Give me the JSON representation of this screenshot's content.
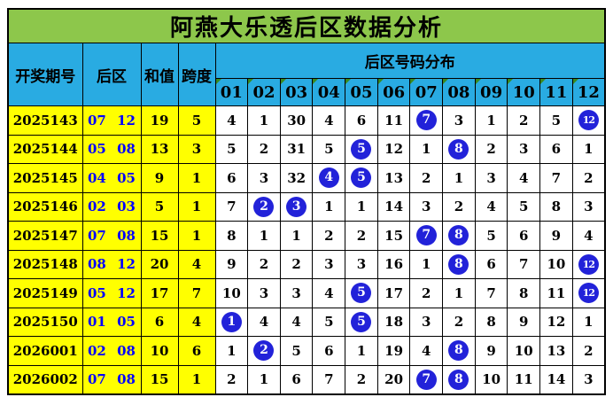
{
  "chart_data": {
    "type": "table",
    "title": "阿燕大乐透后区数据分析",
    "header": {
      "period": "开奖期号",
      "back_zone": "后区",
      "sum": "和值",
      "span": "跨度",
      "distribution": "后区号码分布"
    },
    "number_columns": [
      "01",
      "02",
      "03",
      "04",
      "05",
      "06",
      "07",
      "08",
      "09",
      "10",
      "11",
      "12"
    ],
    "rows": [
      {
        "period": "2025143",
        "back_zone": "07 12",
        "sum": "19",
        "span": "5",
        "cells": [
          "4",
          "1",
          "30",
          "4",
          "6",
          "11",
          "7",
          "3",
          "1",
          "2",
          "5",
          "12"
        ],
        "ball_columns": [
          "07",
          "12"
        ]
      },
      {
        "period": "2025144",
        "back_zone": "05 08",
        "sum": "13",
        "span": "3",
        "cells": [
          "5",
          "2",
          "31",
          "5",
          "5",
          "12",
          "1",
          "8",
          "2",
          "3",
          "6",
          "1"
        ],
        "ball_columns": [
          "05",
          "08"
        ]
      },
      {
        "period": "2025145",
        "back_zone": "04 05",
        "sum": "9",
        "span": "1",
        "cells": [
          "6",
          "3",
          "32",
          "4",
          "5",
          "13",
          "2",
          "1",
          "3",
          "4",
          "7",
          "2"
        ],
        "ball_columns": [
          "04",
          "05"
        ]
      },
      {
        "period": "2025146",
        "back_zone": "02 03",
        "sum": "5",
        "span": "1",
        "cells": [
          "7",
          "2",
          "3",
          "1",
          "1",
          "14",
          "3",
          "2",
          "4",
          "5",
          "8",
          "3"
        ],
        "ball_columns": [
          "02",
          "03"
        ]
      },
      {
        "period": "2025147",
        "back_zone": "07 08",
        "sum": "15",
        "span": "1",
        "cells": [
          "8",
          "1",
          "1",
          "2",
          "2",
          "15",
          "7",
          "8",
          "5",
          "6",
          "9",
          "4"
        ],
        "ball_columns": [
          "07",
          "08"
        ]
      },
      {
        "period": "2025148",
        "back_zone": "08 12",
        "sum": "20",
        "span": "4",
        "cells": [
          "9",
          "2",
          "2",
          "3",
          "3",
          "16",
          "1",
          "8",
          "6",
          "7",
          "10",
          "12"
        ],
        "ball_columns": [
          "08",
          "12"
        ]
      },
      {
        "period": "2025149",
        "back_zone": "05 12",
        "sum": "17",
        "span": "7",
        "cells": [
          "10",
          "3",
          "3",
          "4",
          "5",
          "17",
          "2",
          "1",
          "7",
          "8",
          "11",
          "12"
        ],
        "ball_columns": [
          "05",
          "12"
        ]
      },
      {
        "period": "2025150",
        "back_zone": "01 05",
        "sum": "6",
        "span": "4",
        "cells": [
          "1",
          "4",
          "4",
          "5",
          "5",
          "18",
          "3",
          "2",
          "8",
          "9",
          "12",
          "1"
        ],
        "ball_columns": [
          "01",
          "05"
        ]
      },
      {
        "period": "2026001",
        "back_zone": "02 08",
        "sum": "10",
        "span": "6",
        "cells": [
          "1",
          "2",
          "5",
          "6",
          "1",
          "19",
          "4",
          "8",
          "9",
          "10",
          "13",
          "2"
        ],
        "ball_columns": [
          "02",
          "08"
        ]
      },
      {
        "period": "2026002",
        "back_zone": "07 08",
        "sum": "15",
        "span": "1",
        "cells": [
          "2",
          "1",
          "6",
          "7",
          "2",
          "20",
          "7",
          "8",
          "10",
          "11",
          "14",
          "3"
        ],
        "ball_columns": [
          "07",
          "08"
        ]
      }
    ]
  },
  "colors": {
    "title_bg": "#8dc74b",
    "header_bg": "#29abe2",
    "label_bg": "#ffff00",
    "ball_bg": "#2222d9",
    "back_text": "#0000ff",
    "triangle": "#3a8a1e",
    "page_bg": "#ffffff"
  }
}
